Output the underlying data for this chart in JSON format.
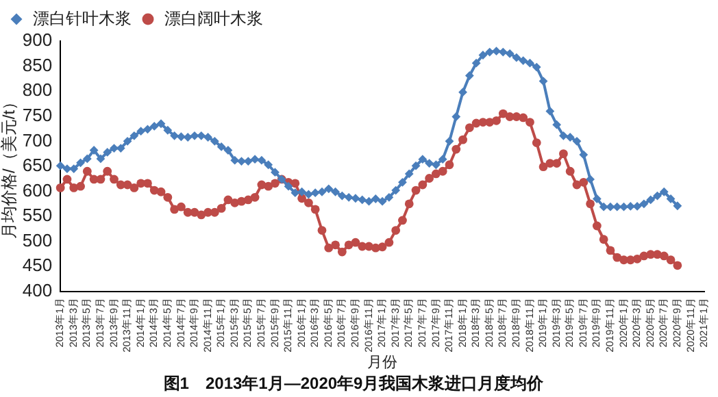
{
  "chart_data": {
    "type": "line",
    "title": "图1　2013年1月—2020年9月我国木浆进口月度均价",
    "xlabel": "月份",
    "ylabel": "月均价格/（美元/t）",
    "categories": [
      "2013年1月",
      null,
      "2013年3月",
      null,
      "2013年5月",
      null,
      "2013年7月",
      null,
      "2013年9月",
      null,
      "2013年11月",
      null,
      "2014年1月",
      null,
      "2014年3月",
      null,
      "2014年5月",
      null,
      "2014年7月",
      null,
      "2014年9月",
      null,
      "2014年11月",
      null,
      "2015年1月",
      null,
      "2015年3月",
      null,
      "2015年5月",
      null,
      "2015年7月",
      null,
      "2015年9月",
      null,
      "2015年11月",
      null,
      "2016年1月",
      null,
      "2016年3月",
      null,
      "2016年5月",
      null,
      "2016年7月",
      null,
      "2016年9月",
      null,
      "2016年11月",
      null,
      "2017年1月",
      null,
      "2017年3月",
      null,
      "2017年5月",
      null,
      "2017年7月",
      null,
      "2017年9月",
      null,
      "2017年11月",
      null,
      "2018年1月",
      null,
      "2018年3月",
      null,
      "2018年5月",
      null,
      "2018年7月",
      null,
      "2018年9月",
      null,
      "2018年11月",
      null,
      "2019年1月",
      null,
      "2019年3月",
      null,
      "2019年5月",
      null,
      "2019年7月",
      null,
      "2019年9月",
      null,
      "2019年11月",
      null,
      "2020年1月",
      null,
      "2020年3月",
      null,
      "2020年5月",
      null,
      "2020年7月",
      null,
      "2020年9月",
      null,
      "2020年11月",
      null,
      "2021年1月"
    ],
    "series": [
      {
        "name": "漂白针叶木浆",
        "color": "#4a7ebb",
        "marker": "diamond",
        "values": [
          651,
          645,
          645,
          657,
          665,
          682,
          665,
          678,
          686,
          686,
          700,
          711,
          720,
          724,
          730,
          735,
          722,
          711,
          709,
          708,
          711,
          711,
          708,
          700,
          689,
          682,
          662,
          660,
          660,
          664,
          662,
          653,
          638,
          624,
          610,
          597,
          599,
          594,
          597,
          599,
          605,
          599,
          591,
          588,
          586,
          583,
          580,
          585,
          580,
          588,
          602,
          618,
          635,
          651,
          664,
          656,
          653,
          664,
          700,
          749,
          798,
          831,
          856,
          872,
          878,
          880,
          878,
          875,
          867,
          861,
          856,
          848,
          820,
          760,
          733,
          711,
          708,
          700,
          673,
          624,
          585,
          569,
          569,
          569,
          569,
          570,
          570,
          575,
          583,
          591,
          599,
          585,
          571,
          null,
          null,
          null,
          null
        ]
      },
      {
        "name": "漂白阔叶木浆",
        "color": "#be4b48",
        "marker": "circle",
        "values": [
          607,
          624,
          607,
          610,
          640,
          624,
          624,
          640,
          624,
          613,
          613,
          607,
          616,
          616,
          602,
          599,
          588,
          564,
          569,
          558,
          558,
          553,
          558,
          558,
          566,
          583,
          577,
          580,
          583,
          588,
          613,
          610,
          616,
          624,
          618,
          616,
          586,
          577,
          564,
          522,
          487,
          493,
          479,
          493,
          498,
          490,
          490,
          487,
          489,
          498,
          522,
          542,
          575,
          602,
          613,
          626,
          635,
          640,
          653,
          684,
          703,
          727,
          736,
          738,
          738,
          741,
          755,
          749,
          749,
          747,
          738,
          697,
          649,
          656,
          656,
          675,
          640,
          613,
          618,
          575,
          531,
          504,
          482,
          468,
          463,
          463,
          465,
          471,
          474,
          474,
          471,
          463,
          452,
          null,
          null,
          null,
          null
        ]
      }
    ],
    "ylim": [
      400,
      900
    ],
    "yticks": [
      400,
      450,
      500,
      550,
      600,
      650,
      700,
      750,
      800,
      850,
      900
    ],
    "grid": false,
    "legend": "top left",
    "line_style": "solid"
  }
}
